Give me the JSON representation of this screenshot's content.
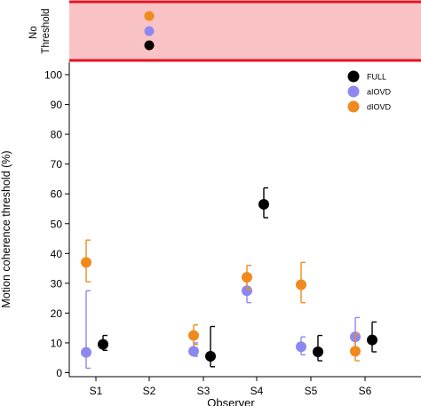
{
  "chart_data": {
    "type": "scatter",
    "xlabel": "Observer",
    "ylabel": "Motion coherence threshold (%)",
    "categories": [
      "S1",
      "S2",
      "S3",
      "S4",
      "S5",
      "S6"
    ],
    "ylim": [
      0,
      105
    ],
    "yticks": [
      0,
      10,
      20,
      30,
      40,
      50,
      60,
      70,
      80,
      90,
      100
    ],
    "no_threshold_label": "No Threshold",
    "no_threshold_colors": {
      "fill": "#f9c3c6",
      "border": "#e8101e"
    },
    "legend_position": "top-right",
    "series": [
      {
        "name": "FULL",
        "color": "#000000",
        "points": [
          {
            "category": "S1",
            "value": 9.5,
            "lo": 7.5,
            "hi": 12.5
          },
          {
            "category": "S3",
            "value": 5.5,
            "lo": 2.0,
            "hi": 15.5
          },
          {
            "category": "S4",
            "value": 56.5,
            "lo": 52.0,
            "hi": 62.0
          },
          {
            "category": "S5",
            "value": 7.0,
            "lo": 4.0,
            "hi": 12.5
          },
          {
            "category": "S6",
            "value": 11.0,
            "lo": 7.0,
            "hi": 17.0
          }
        ]
      },
      {
        "name": "aIOVD",
        "color": "#8c88f0",
        "points": [
          {
            "category": "S1",
            "value": 6.8,
            "lo": 1.5,
            "hi": 27.5
          },
          {
            "category": "S3",
            "value": 7.2,
            "lo": 5.5,
            "hi": 10.0
          },
          {
            "category": "S4",
            "value": 27.5,
            "lo": 23.5,
            "hi": 33.0
          },
          {
            "category": "S5",
            "value": 8.7,
            "lo": 6.0,
            "hi": 12.0
          },
          {
            "category": "S6",
            "value": 12.0,
            "lo": 8.0,
            "hi": 18.5
          }
        ]
      },
      {
        "name": "dIOVD",
        "color": "#f08a1e",
        "points": [
          {
            "category": "S1",
            "value": 37.0,
            "lo": 30.5,
            "hi": 44.5
          },
          {
            "category": "S3",
            "value": 12.5,
            "lo": 9.5,
            "hi": 16.0
          },
          {
            "category": "S4",
            "value": 32.0,
            "lo": 28.0,
            "hi": 36.0
          },
          {
            "category": "S5",
            "value": 29.5,
            "lo": 23.5,
            "hi": 37.0
          },
          {
            "category": "S6",
            "value": 7.2,
            "lo": 4.0,
            "hi": 13.0
          }
        ]
      }
    ],
    "no_threshold_points": [
      {
        "category": "S2",
        "series": "dIOVD"
      },
      {
        "category": "S2",
        "series": "aIOVD"
      },
      {
        "category": "S2",
        "series": "FULL"
      }
    ]
  }
}
